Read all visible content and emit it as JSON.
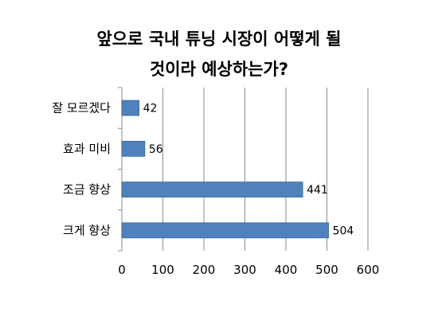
{
  "chart_data": {
    "type": "bar",
    "orientation": "horizontal",
    "title_line1": "앞으로 국내 튜닝 시장이 어떻게 될",
    "title_line2": "것이라 예상하는가?",
    "categories": [
      "잘 모르겠다",
      "효과 미비",
      "조금 향상",
      "크게 향상"
    ],
    "values": [
      42,
      56,
      441,
      504
    ],
    "xlim": [
      0,
      600
    ],
    "xticks": [
      "0",
      "100",
      "200",
      "300",
      "400",
      "500",
      "600"
    ],
    "grid": true,
    "legend": "none",
    "bar_color": "#4f81bd"
  }
}
